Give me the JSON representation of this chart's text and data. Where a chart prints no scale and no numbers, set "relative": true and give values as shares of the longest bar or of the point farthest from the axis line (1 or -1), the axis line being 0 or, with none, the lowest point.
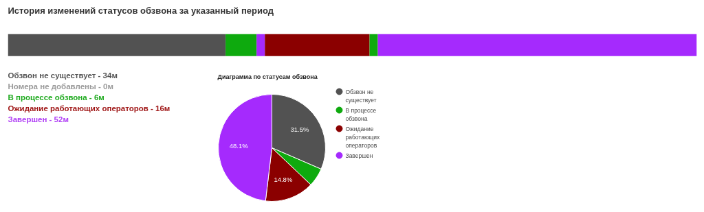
{
  "chart_data": [
    {
      "type": "bar",
      "title": "История изменений статусов обзвона за указанный период",
      "orientation": "horizontal",
      "stacked": true,
      "relative": true,
      "categories": [
        null
      ],
      "series": [
        {
          "color": "#525252",
          "values": [
            0.316
          ]
        },
        {
          "color": "#0eaa0e",
          "values": [
            0.045
          ]
        },
        {
          "color": "#a52afd",
          "values": [
            0.012
          ]
        },
        {
          "color": "#8b0000",
          "values": [
            0.152
          ]
        },
        {
          "color": "#0eaa0e",
          "values": [
            0.012
          ]
        },
        {
          "color": "#a52afd",
          "values": [
            0.463
          ]
        }
      ]
    },
    {
      "type": "other",
      "annotations": [
        "Обзвон не существует - 34м",
        "Номера не добавлены - 0м",
        "В процессе обзвона - 6м",
        "Ожидание работающих операторов - 16м",
        "Завершен - 52м"
      ],
      "colors": [
        "#555555",
        "#9a9a9a",
        "#1faa1f",
        "#a01818",
        "#b040f5"
      ]
    },
    {
      "type": "pie",
      "title": "Диаграмма по статусам обзвона",
      "categories": [
        "Обзвон не существует",
        "В процессе обзвона",
        "Ожидание работающих операторов",
        "Завершен"
      ],
      "values": [
        31.5,
        5.6,
        14.8,
        48.1
      ],
      "colors": [
        "#525252",
        "#0eaa0e",
        "#8b0000",
        "#a52afd"
      ],
      "value_labels": [
        "31.5%",
        null,
        "14.8%",
        "48.1%"
      ],
      "legend": "right"
    }
  ]
}
